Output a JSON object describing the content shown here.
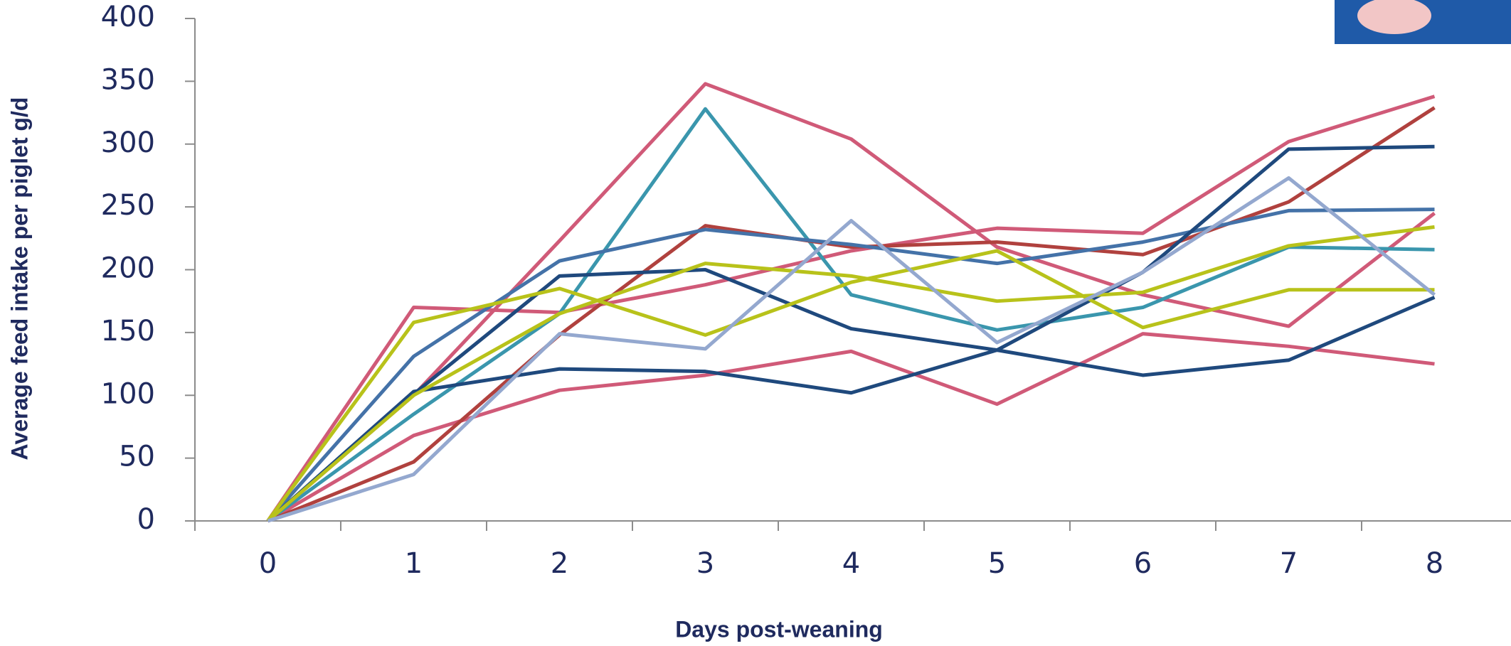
{
  "chart_data": {
    "type": "line",
    "x_label": "Days post-weaning",
    "y_label": "Average feed intake per piglet g/d",
    "categories": [
      "0",
      "1",
      "2",
      "3",
      "4",
      "5",
      "6",
      "7",
      "8"
    ],
    "ylim": [
      0,
      400
    ],
    "yticks": [
      0,
      50,
      100,
      150,
      200,
      250,
      300,
      350,
      400
    ],
    "series": [
      {
        "color": "#d05a78",
        "values": [
          0,
          170,
          166,
          188,
          215,
          233,
          229,
          302,
          338
        ]
      },
      {
        "color": "#d05a78",
        "values": [
          0,
          100,
          223,
          348,
          304,
          218,
          180,
          155,
          245
        ]
      },
      {
        "color": "#d05a78",
        "values": [
          0,
          68,
          104,
          116,
          135,
          93,
          149,
          139,
          125
        ]
      },
      {
        "color": "#3a96ad",
        "values": [
          0,
          85,
          165,
          328,
          180,
          152,
          170,
          218,
          216
        ]
      },
      {
        "color": "#b0413e",
        "values": [
          0,
          47,
          148,
          235,
          218,
          222,
          212,
          254,
          329
        ]
      },
      {
        "color": "#4472a8",
        "values": [
          0,
          131,
          207,
          232,
          220,
          205,
          222,
          247,
          248
        ]
      },
      {
        "color": "#1f497d",
        "values": [
          0,
          101,
          195,
          200,
          153,
          136,
          198,
          296,
          298
        ]
      },
      {
        "color": "#1f497d",
        "values": [
          0,
          103,
          121,
          119,
          102,
          136,
          116,
          128,
          178
        ]
      },
      {
        "color": "#b8c21a",
        "values": [
          0,
          158,
          185,
          148,
          190,
          215,
          154,
          184,
          184
        ]
      },
      {
        "color": "#b8c21a",
        "values": [
          0,
          100,
          165,
          205,
          195,
          175,
          182,
          219,
          234
        ]
      },
      {
        "color": "#94a8cf",
        "values": [
          0,
          37,
          149,
          137,
          239,
          142,
          198,
          273,
          180
        ]
      }
    ]
  }
}
